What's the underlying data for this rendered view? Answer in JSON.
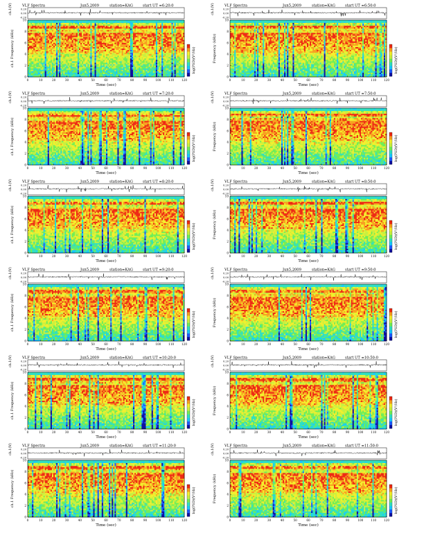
{
  "chart_data": [
    {
      "type": "heatmap",
      "header": {
        "left": "VLF Spectra",
        "date": "Jun5,2009",
        "station": "station=KAG",
        "start": "start  UT =6:20:0"
      },
      "xlabel": "Time (sec)",
      "ylabel_top": "ch.1(V)",
      "ylabel_main": "ch.1 Frequency (kHz)",
      "colorbar_label": "log(PSD)(V²/Hz)",
      "xlim": [
        0,
        120
      ],
      "ylim": [
        0,
        10
      ],
      "xticks": [
        0,
        10,
        20,
        30,
        40,
        50,
        60,
        70,
        80,
        90,
        100,
        110,
        120
      ],
      "yticks": [
        0,
        2,
        4,
        6,
        8,
        10
      ],
      "top_yticks": [
        "0.20",
        "0.00",
        "-0.20"
      ]
    },
    {
      "type": "heatmap",
      "header": {
        "left": "VLF Spectra",
        "date": "Jun5,2009",
        "station": "station=KAG",
        "start": "start  UT =6:50:0"
      },
      "xlabel": "Time (sec)",
      "ylabel_top": "ch.1(V)",
      "ylabel_main": "Frequency (kHz)",
      "colorbar_label": "log(PSD)(V²/Hz)",
      "xlim": [
        0,
        120
      ],
      "ylim": [
        0,
        10
      ],
      "xticks": [
        0,
        10,
        20,
        30,
        40,
        50,
        60,
        70,
        80,
        90,
        100,
        110,
        120
      ],
      "yticks": [
        0,
        2,
        4,
        6,
        8,
        10
      ],
      "top_yticks": [
        "0.20",
        "0.00",
        "-0.20"
      ]
    },
    {
      "type": "heatmap",
      "header": {
        "left": "VLF Spectra",
        "date": "Jun5,2009",
        "station": "station=KAG",
        "start": "start  UT =7:20:0"
      },
      "xlabel": "Time (sec)",
      "ylabel_top": "ch.1(V)",
      "ylabel_main": "ch.1 Frequency (kHz)",
      "colorbar_label": "log(PSD)(V²/Hz)",
      "xlim": [
        0,
        120
      ],
      "ylim": [
        0,
        10
      ],
      "xticks": [
        0,
        10,
        20,
        30,
        40,
        50,
        60,
        70,
        80,
        90,
        100,
        110,
        120
      ],
      "yticks": [
        0,
        2,
        4,
        6,
        8,
        10
      ],
      "top_yticks": [
        "0.20",
        "0.00",
        "-0.20"
      ]
    },
    {
      "type": "heatmap",
      "header": {
        "left": "VLF Spectra",
        "date": "Jun5,2009",
        "station": "station=KAG",
        "start": "start  UT =7:50:0"
      },
      "xlabel": "Time (sec)",
      "ylabel_top": "ch.1(V)",
      "ylabel_main": "Frequency (kHz)",
      "colorbar_label": "log(PSD)(V²/Hz)",
      "xlim": [
        0,
        120
      ],
      "ylim": [
        0,
        10
      ],
      "xticks": [
        0,
        10,
        20,
        30,
        40,
        50,
        60,
        70,
        80,
        90,
        100,
        110,
        120
      ],
      "yticks": [
        0,
        2,
        4,
        6,
        8,
        10
      ],
      "top_yticks": [
        "0.20",
        "0.00",
        "-0.20"
      ]
    },
    {
      "type": "heatmap",
      "header": {
        "left": "VLF Spectra",
        "date": "Jun5,2009",
        "station": "station=KAG",
        "start": "start  UT =8:20:0"
      },
      "xlabel": "Time (sec)",
      "ylabel_top": "ch.1(V)",
      "ylabel_main": "ch.1 Frequency (kHz)",
      "colorbar_label": "log(PSD)(V²/Hz)",
      "xlim": [
        0,
        120
      ],
      "ylim": [
        0,
        10
      ],
      "xticks": [
        0,
        10,
        20,
        30,
        40,
        50,
        60,
        70,
        80,
        90,
        100,
        110,
        120
      ],
      "yticks": [
        0,
        2,
        4,
        6,
        8,
        10
      ],
      "top_yticks": [
        "0.20",
        "0.00",
        "-0.20"
      ]
    },
    {
      "type": "heatmap",
      "header": {
        "left": "VLF Spectra",
        "date": "Jun5,2009",
        "station": "station=KAG",
        "start": "start  UT =8:50:0"
      },
      "xlabel": "Time (sec)",
      "ylabel_top": "ch.1(V)",
      "ylabel_main": "Frequency (kHz)",
      "colorbar_label": "log(PSD)(V²/Hz)",
      "xlim": [
        0,
        120
      ],
      "ylim": [
        0,
        10
      ],
      "xticks": [
        0,
        10,
        20,
        30,
        40,
        50,
        60,
        70,
        80,
        90,
        100,
        110,
        120
      ],
      "yticks": [
        0,
        2,
        4,
        6,
        8,
        10
      ],
      "top_yticks": [
        "0.20",
        "0.00",
        "-0.20"
      ]
    },
    {
      "type": "heatmap",
      "header": {
        "left": "VLF Spectra",
        "date": "Jun5,2009",
        "station": "station=KAG",
        "start": "start  UT =9:20:0"
      },
      "xlabel": "Time (sec)",
      "ylabel_top": "ch.1(V)",
      "ylabel_main": "ch.1 Frequency (kHz)",
      "colorbar_label": "log(PSD)(V²/Hz)",
      "xlim": [
        0,
        120
      ],
      "ylim": [
        0,
        10
      ],
      "xticks": [
        0,
        10,
        20,
        30,
        40,
        50,
        60,
        70,
        80,
        90,
        100,
        110,
        120
      ],
      "yticks": [
        0,
        2,
        4,
        6,
        8,
        10
      ],
      "top_yticks": [
        "0.20",
        "0.00",
        "-0.20"
      ]
    },
    {
      "type": "heatmap",
      "header": {
        "left": "VLF Spectra",
        "date": "Jun5,2009",
        "station": "station=KAG",
        "start": "start  UT =9:50:0"
      },
      "xlabel": "Time (sec)",
      "ylabel_top": "ch.1(V)",
      "ylabel_main": "Frequency (kHz)",
      "colorbar_label": "log(PSD)(V²/Hz)",
      "xlim": [
        0,
        120
      ],
      "ylim": [
        0,
        10
      ],
      "xticks": [
        0,
        10,
        20,
        30,
        40,
        50,
        60,
        70,
        80,
        90,
        100,
        110,
        120
      ],
      "yticks": [
        0,
        2,
        4,
        6,
        8,
        10
      ],
      "top_yticks": [
        "0.20",
        "0.00",
        "-0.20"
      ]
    },
    {
      "type": "heatmap",
      "header": {
        "left": "VLF Spectra",
        "date": "Jun5,2009",
        "station": "station=KAG",
        "start": "start  UT =10:20:0"
      },
      "xlabel": "Time (sec)",
      "ylabel_top": "ch.1(V)",
      "ylabel_main": "ch.1 Frequency (kHz)",
      "colorbar_label": "log(PSD)(V²/Hz)",
      "xlim": [
        0,
        120
      ],
      "ylim": [
        0,
        10
      ],
      "xticks": [
        0,
        10,
        20,
        30,
        40,
        50,
        60,
        70,
        80,
        90,
        100,
        110,
        120
      ],
      "yticks": [
        0,
        2,
        4,
        6,
        8,
        10
      ],
      "top_yticks": [
        "0.20",
        "0.00",
        "-0.20"
      ]
    },
    {
      "type": "heatmap",
      "header": {
        "left": "VLF Spectra",
        "date": "Jun5,2009",
        "station": "station=KAG",
        "start": "start  UT =10:50:0"
      },
      "xlabel": "Time (sec)",
      "ylabel_top": "ch.1(V)",
      "ylabel_main": "Frequency (kHz)",
      "colorbar_label": "log(PSD)(V²/Hz)",
      "xlim": [
        0,
        120
      ],
      "ylim": [
        0,
        10
      ],
      "xticks": [
        0,
        10,
        20,
        30,
        40,
        50,
        60,
        70,
        80,
        90,
        100,
        110,
        120
      ],
      "yticks": [
        0,
        2,
        4,
        6,
        8,
        10
      ],
      "top_yticks": [
        "0.20",
        "0.00",
        "-0.20"
      ]
    },
    {
      "type": "heatmap",
      "header": {
        "left": "VLF Spectra",
        "date": "Jun5,2009",
        "station": "station=KAG",
        "start": "start  UT =11:20:0"
      },
      "xlabel": "Time (sec)",
      "ylabel_top": "ch.1(V)",
      "ylabel_main": "ch.1 Frequency (kHz)",
      "colorbar_label": "log(PSD)(V²/Hz)",
      "xlim": [
        0,
        120
      ],
      "ylim": [
        0,
        10
      ],
      "xticks": [
        0,
        10,
        20,
        30,
        40,
        50,
        60,
        70,
        80,
        90,
        100,
        110,
        120
      ],
      "yticks": [
        0,
        2,
        4,
        6,
        8,
        10
      ],
      "top_yticks": [
        "0.20",
        "0.00",
        "-0.20"
      ]
    },
    {
      "type": "heatmap",
      "header": {
        "left": "VLF Spectra",
        "date": "Jun5,2009",
        "station": "station=KAG",
        "start": "start  UT =11:50:0"
      },
      "xlabel": "Time (sec)",
      "ylabel_top": "ch.1(V)",
      "ylabel_main": "Frequency (kHz)",
      "colorbar_label": "log(PSD)(V²/Hz)",
      "xlim": [
        0,
        120
      ],
      "ylim": [
        0,
        10
      ],
      "xticks": [
        0,
        10,
        20,
        30,
        40,
        50,
        60,
        70,
        80,
        90,
        100,
        110,
        120
      ],
      "yticks": [
        0,
        2,
        4,
        6,
        8,
        10
      ],
      "top_yticks": [
        "0.20",
        "0.00",
        "-0.20"
      ]
    }
  ],
  "colors": {
    "colormap": [
      "#1010a0",
      "#1e5cff",
      "#18c8ff",
      "#30e0c0",
      "#70ee58",
      "#c8f040",
      "#f4ef2c",
      "#f8a020",
      "#ee2a14"
    ],
    "background": "#ffffff",
    "waveform": "#000000"
  }
}
